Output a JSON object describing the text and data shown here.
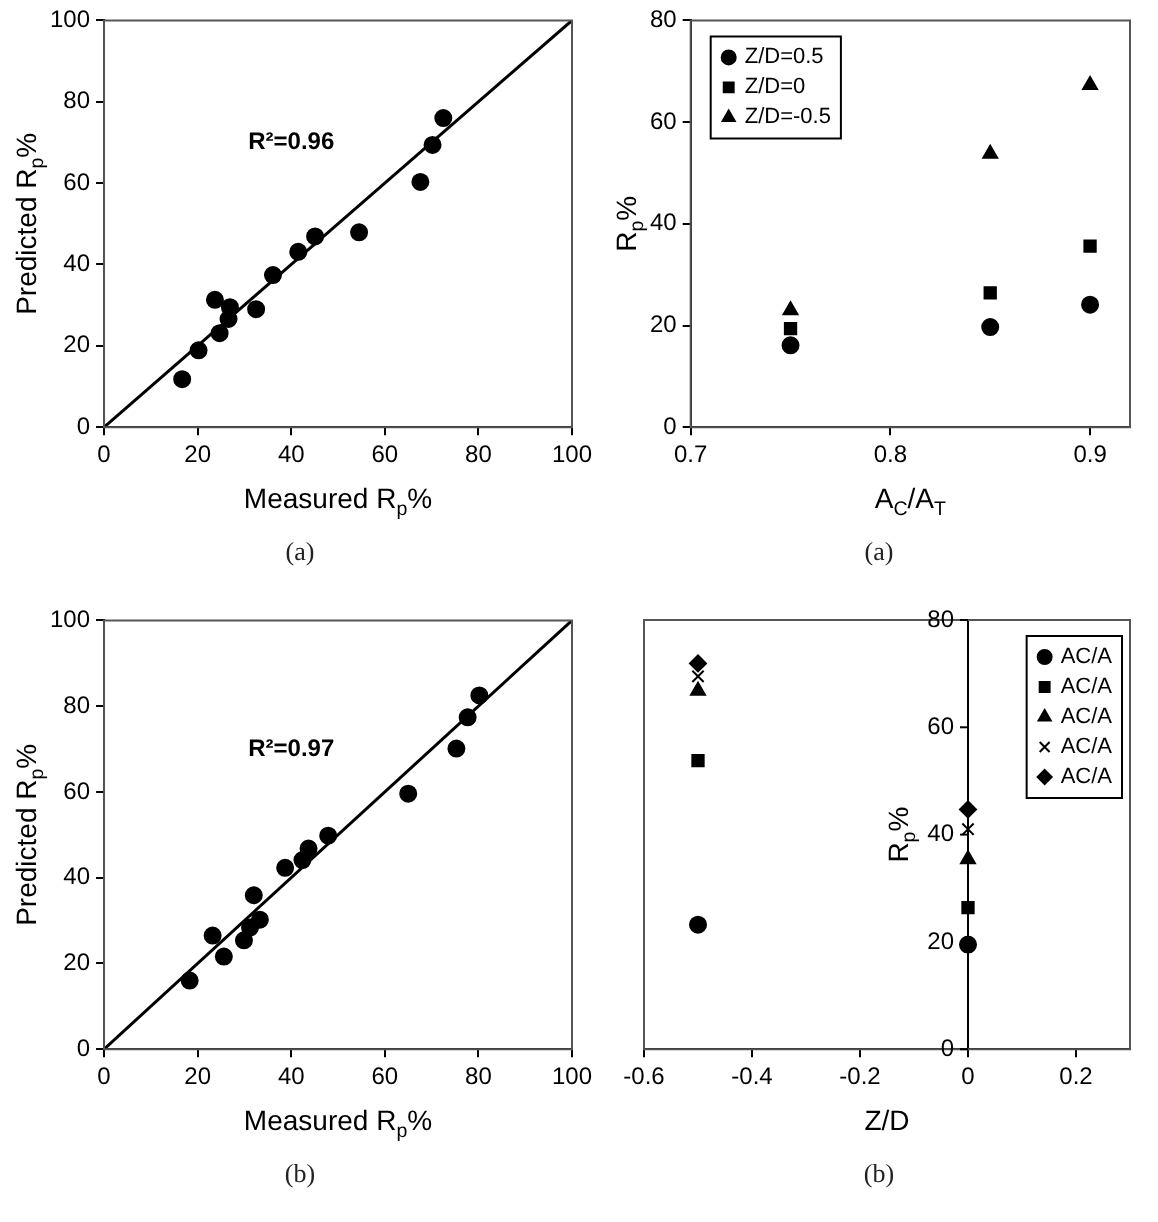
{
  "chart_data": [
    {
      "type": "scatter",
      "xlabel": "Measured R$_{p}$%",
      "ylabel": "Predicted R$_{p}$%",
      "xlim": [
        0,
        100
      ],
      "ylim": [
        0,
        100
      ],
      "xticks": [
        0,
        20,
        40,
        60,
        80,
        100
      ],
      "yticks": [
        0,
        20,
        40,
        60,
        80,
        100
      ],
      "grid": false,
      "annotations": [
        "R²=0.96",
        "(a)"
      ],
      "series": [
        {
          "type": "scatter",
          "color": "#000000",
          "marker": "circle",
          "x": [
            16.7,
            20.2,
            23.7,
            24.7,
            26.9,
            26.6,
            32.5,
            36.1,
            41.5,
            45.1,
            54.5,
            67.6,
            70.2,
            72.5
          ],
          "values": [
            11.8,
            18.9,
            31.3,
            23.1,
            29.5,
            26.6,
            29.0,
            37.4,
            43.1,
            46.9,
            47.9,
            60.3,
            69.4,
            76.0
          ]
        },
        {
          "type": "line",
          "color": "#000000",
          "marker": "none",
          "x": [
            0,
            100
          ],
          "values": [
            0,
            100
          ]
        }
      ]
    },
    {
      "type": "scatter",
      "xlabel": "A$_{C}$/A$_{T}$",
      "ylabel": "R$_{p}$%",
      "xlim": [
        0.7,
        0.92
      ],
      "ylim": [
        0,
        80
      ],
      "xticks": [
        0.7,
        0.8,
        0.9
      ],
      "yticks": [
        0,
        20,
        40,
        60,
        80
      ],
      "grid": false,
      "legend": "top left",
      "annotations": [
        "(a)"
      ],
      "series": [
        {
          "name": "Z/D=0.5",
          "color": "#000000",
          "marker": "circle",
          "x": [
            0.75,
            0.85,
            0.9
          ],
          "values": [
            16.1,
            19.7,
            24.1
          ]
        },
        {
          "name": "Z/D=0",
          "color": "#000000",
          "marker": "square",
          "x": [
            0.75,
            0.85,
            0.9
          ],
          "values": [
            19.4,
            26.4,
            35.6
          ]
        },
        {
          "name": "Z/D=-0.5",
          "color": "#000000",
          "marker": "triangle",
          "x": [
            0.75,
            0.85,
            0.9
          ],
          "values": [
            23.0,
            53.8,
            67.3
          ]
        }
      ]
    },
    {
      "type": "scatter",
      "xlabel": "Measured R$_{p}$%",
      "ylabel": "Predicted R$_{p}$%",
      "xlim": [
        0,
        100
      ],
      "ylim": [
        0,
        100
      ],
      "xticks": [
        0,
        20,
        40,
        60,
        80,
        100
      ],
      "yticks": [
        0,
        20,
        40,
        60,
        80,
        100
      ],
      "grid": false,
      "annotations": [
        "R²=0.97",
        "(b)"
      ],
      "series": [
        {
          "type": "scatter",
          "color": "#000000",
          "marker": "circle",
          "x": [
            18.3,
            23.2,
            25.6,
            29.9,
            31.2,
            32.0,
            33.3,
            38.7,
            42.4,
            43.7,
            47.9,
            65.0,
            75.3,
            77.7,
            80.2
          ],
          "values": [
            16.0,
            26.5,
            21.6,
            25.4,
            28.4,
            35.9,
            30.2,
            42.3,
            44.1,
            46.8,
            49.8,
            59.6,
            70.1,
            77.4,
            82.5
          ]
        },
        {
          "type": "line",
          "color": "#000000",
          "marker": "none",
          "x": [
            0,
            100
          ],
          "values": [
            0,
            100
          ]
        }
      ]
    },
    {
      "type": "scatter",
      "xlabel": "Z/D",
      "ylabel": "R$_{p}$%",
      "xlim": [
        -0.6,
        0.3
      ],
      "ylim": [
        0,
        80
      ],
      "xticks": [
        -0.6,
        -0.4,
        -0.2,
        0,
        0.2
      ],
      "yticks": [
        0,
        20,
        40,
        60,
        80
      ],
      "grid": false,
      "legend": "top right",
      "annotations": [
        "(b)"
      ],
      "series": [
        {
          "name": "AC/A",
          "color": "#000000",
          "marker": "circle",
          "x": [
            -0.5,
            0
          ],
          "values": [
            23.2,
            19.5
          ]
        },
        {
          "name": "AC/A",
          "color": "#000000",
          "marker": "square",
          "x": [
            -0.5,
            0
          ],
          "values": [
            53.8,
            26.4
          ]
        },
        {
          "name": "AC/A",
          "color": "#000000",
          "marker": "triangle",
          "x": [
            -0.5,
            0
          ],
          "values": [
            66.8,
            35.4
          ]
        },
        {
          "name": "AC/A",
          "color": "#000000",
          "marker": "cross",
          "x": [
            -0.5,
            0
          ],
          "values": [
            69.5,
            41.0
          ]
        },
        {
          "name": "AC/A",
          "color": "#000000",
          "marker": "diamond",
          "x": [
            -0.5,
            0
          ],
          "values": [
            71.9,
            44.7
          ]
        }
      ]
    }
  ]
}
